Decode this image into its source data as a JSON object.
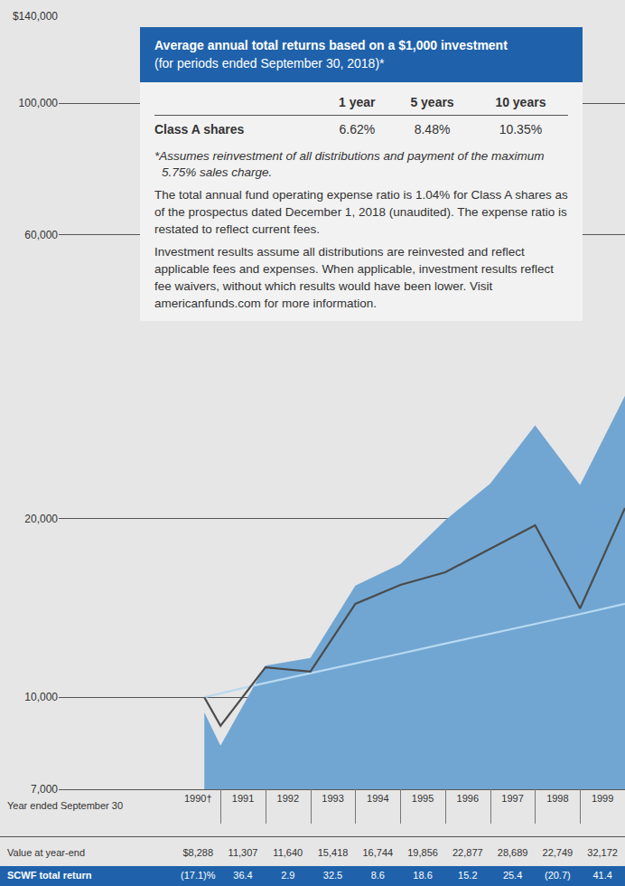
{
  "chart_data": {
    "type": "line",
    "x": [
      1990.14,
      1990.5,
      1991.5,
      1992.5,
      1993.5,
      1994.5,
      1995.5,
      1996.5,
      1997.5,
      1998.5,
      1999.5
    ],
    "series": [
      {
        "type": "area",
        "color": "#71a6d2",
        "values": [
          9425,
          8288,
          11307,
          11640,
          15418,
          16744,
          19856,
          22877,
          28689,
          22749,
          32172
        ]
      },
      {
        "type": "line",
        "color": "#b8d9f0",
        "values": [
          10000,
          10150,
          10570,
          10975,
          11390,
          11840,
          12310,
          12780,
          13270,
          13800,
          14360
        ]
      },
      {
        "type": "line",
        "color": "#4b4b4b",
        "values": [
          10000,
          8950,
          11230,
          11040,
          14360,
          15450,
          16230,
          17780,
          19470,
          14110,
          20820
        ]
      }
    ],
    "xlim": [
      1986.9,
      1999.5
    ],
    "xticks": [
      {
        "value": 1990,
        "label": "1990†"
      },
      1991,
      1992,
      1993,
      1994,
      1995,
      1996,
      1997,
      1998,
      1999
    ],
    "ylim": [
      7000,
      140000
    ],
    "yticks": [
      {
        "value": 7000,
        "label": "7,000"
      },
      {
        "value": 10000,
        "label": "10,000"
      },
      {
        "value": 20000,
        "label": "20,000"
      },
      {
        "value": 60000,
        "label": "60,000"
      },
      {
        "value": 100000,
        "label": "100,000"
      },
      {
        "value": 140000,
        "label": "$140,000"
      }
    ],
    "log": "y",
    "grid": true
  },
  "returns_box": {
    "title": "Average annual total returns based on a $1,000 investment",
    "subtitle": "(for periods ended September 30, 2018)*",
    "columns": [
      "1 year",
      "5 years",
      "10 years"
    ],
    "rows": [
      {
        "label": "Class A shares",
        "cells": [
          "6.62%",
          "8.48%",
          "10.35%"
        ]
      }
    ],
    "footnote": "*Assumes reinvestment of all distributions and payment of the maximum 5.75% sales charge.",
    "notes": [
      "The total annual fund operating expense ratio is 1.04% for Class A shares as of the prospectus dated December 1, 2018 (unaudited). The expense ratio is restated to reflect current fees.",
      "Investment results assume all distributions are reinvested and reflect applicable fees and expenses. When applicable, investment results reflect fee waivers, without which results would have been lower. Visit americanfunds.com for more information."
    ]
  },
  "bottom_table": {
    "header_label": "Year ended September 30",
    "rows": [
      {
        "label": "Value at year-end",
        "cells": [
          "$8,288",
          "11,307",
          "11,640",
          "15,418",
          "16,744",
          "19,856",
          "22,877",
          "28,689",
          "22,749",
          "32,172"
        ]
      },
      {
        "label": "SCWF total return",
        "cells": [
          "(17.1)%",
          "36.4",
          "2.9",
          "32.5",
          "8.6",
          "18.6",
          "15.2",
          "25.4",
          "(20.7)",
          "41.4"
        ]
      }
    ]
  }
}
